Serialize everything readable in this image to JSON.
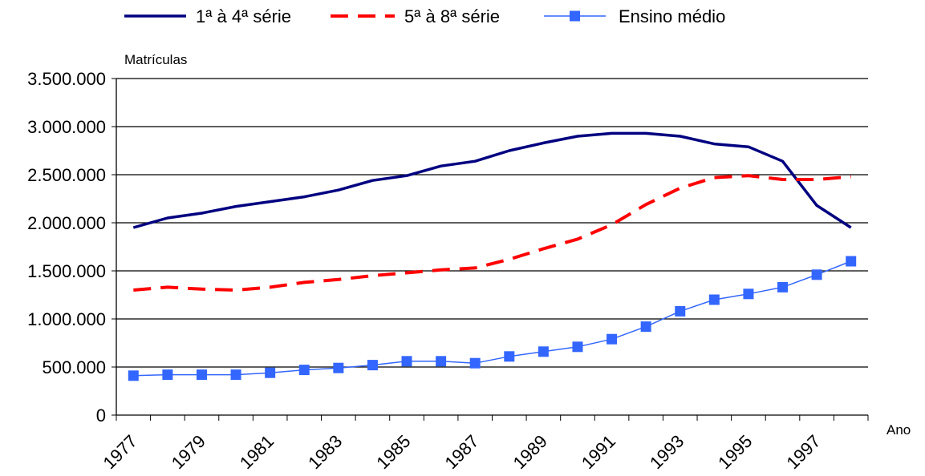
{
  "chart_data": {
    "type": "line",
    "xlabel": "Ano",
    "ylabel": "Matrículas",
    "x": [
      1977,
      1978,
      1979,
      1980,
      1981,
      1982,
      1983,
      1984,
      1985,
      1986,
      1987,
      1988,
      1989,
      1990,
      1991,
      1992,
      1993,
      1994,
      1995,
      1996,
      1997,
      1998
    ],
    "x_tick_labels": [
      "1977",
      "1979",
      "1981",
      "1983",
      "1985",
      "1987",
      "1989",
      "1991",
      "1993",
      "1995",
      "1997"
    ],
    "y_tick_labels": [
      "0",
      "500.000",
      "1.000.000",
      "1.500.000",
      "2.000.000",
      "2.500.000",
      "3.000.000",
      "3.500.000"
    ],
    "ylim": [
      0,
      3500000
    ],
    "grid": true,
    "legend_position": "top",
    "series": [
      {
        "name": "1ª à 4ª série",
        "color": "#000080",
        "style": "solid",
        "values": [
          1950000,
          2050000,
          2100000,
          2170000,
          2220000,
          2270000,
          2340000,
          2440000,
          2490000,
          2590000,
          2640000,
          2750000,
          2830000,
          2900000,
          2930000,
          2930000,
          2900000,
          2820000,
          2790000,
          2640000,
          2180000,
          1950000
        ]
      },
      {
        "name": "5ª à 8ª série",
        "color": "#ff0000",
        "style": "dashed",
        "values": [
          1300000,
          1330000,
          1310000,
          1300000,
          1330000,
          1380000,
          1410000,
          1450000,
          1480000,
          1510000,
          1530000,
          1620000,
          1730000,
          1830000,
          1980000,
          2190000,
          2360000,
          2470000,
          2490000,
          2450000,
          2450000,
          2480000
        ]
      },
      {
        "name": "Ensino médio",
        "color": "#3366ff",
        "style": "solid-markers",
        "values": [
          410000,
          420000,
          420000,
          420000,
          440000,
          470000,
          490000,
          520000,
          560000,
          560000,
          540000,
          610000,
          660000,
          710000,
          790000,
          920000,
          1080000,
          1200000,
          1260000,
          1330000,
          1460000,
          1600000
        ]
      }
    ]
  }
}
